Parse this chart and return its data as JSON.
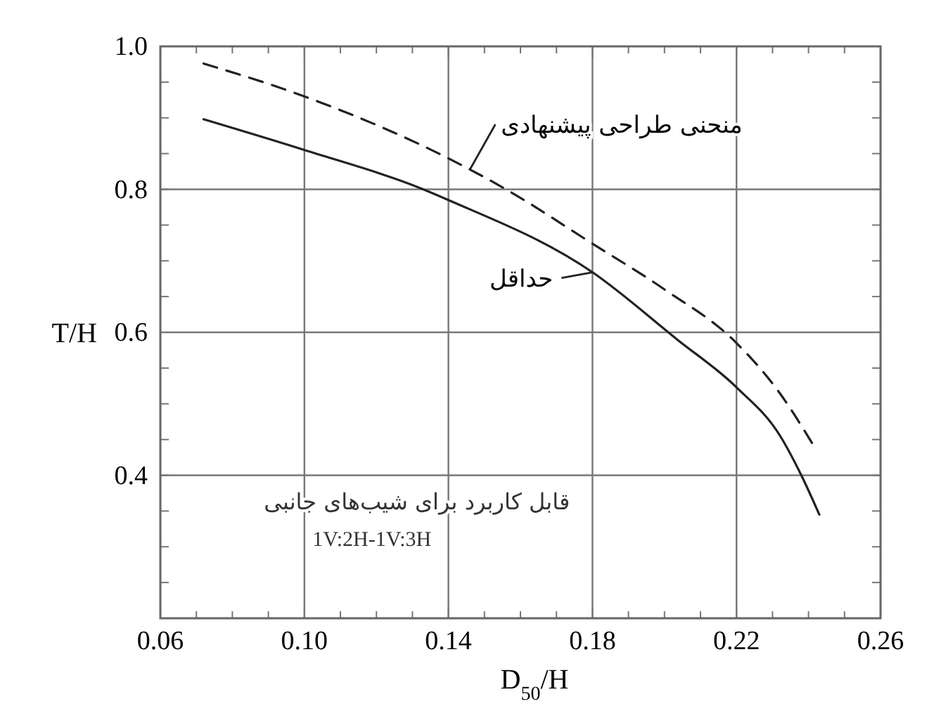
{
  "chart_data": {
    "type": "line",
    "xlabel": "D$_{50}$/H",
    "ylabel": "T/H",
    "xlim": [
      0.06,
      0.26
    ],
    "ylim": [
      0.2,
      1.0
    ],
    "xticks": [
      0.06,
      {
        "value": 0.07,
        "label": null
      },
      {
        "value": 0.08,
        "label": null
      },
      {
        "value": 0.09,
        "label": null
      },
      {
        "value": 0.1,
        "label": "0.10"
      },
      {
        "value": 0.11,
        "label": null
      },
      {
        "value": 0.12,
        "label": null
      },
      {
        "value": 0.13,
        "label": null
      },
      0.14,
      {
        "value": 0.15,
        "label": null
      },
      {
        "value": 0.16,
        "label": null
      },
      {
        "value": 0.17,
        "label": null
      },
      0.18,
      {
        "value": 0.19,
        "label": null
      },
      {
        "value": 0.2,
        "label": null
      },
      {
        "value": 0.21,
        "label": null
      },
      0.22,
      {
        "value": 0.23,
        "label": null
      },
      {
        "value": 0.24,
        "label": null
      },
      {
        "value": 0.25,
        "label": null
      },
      0.26
    ],
    "yticks": [
      {
        "value": 0.2,
        "label": null
      },
      {
        "value": 0.25,
        "label": null
      },
      {
        "value": 0.3,
        "label": null
      },
      {
        "value": 0.35,
        "label": null
      },
      0.4,
      {
        "value": 0.45,
        "label": null
      },
      {
        "value": 0.5,
        "label": null
      },
      {
        "value": 0.55,
        "label": null
      },
      0.6,
      {
        "value": 0.65,
        "label": null
      },
      {
        "value": 0.7,
        "label": null
      },
      {
        "value": 0.75,
        "label": null
      },
      0.8,
      {
        "value": 0.85,
        "label": null
      },
      {
        "value": 0.9,
        "label": null
      },
      {
        "value": 0.95,
        "label": null
      },
      {
        "value": 1.0,
        "label": "1.0"
      }
    ],
    "grid": true,
    "series": [
      {
        "color": "#222222",
        "line_style": "dashed",
        "x": [
          0.072,
          0.1,
          0.144,
          0.156,
          0.18,
          0.2,
          0.22,
          0.232,
          0.241
        ],
        "values": [
          0.976,
          0.93,
          0.833,
          0.8,
          0.724,
          0.66,
          0.585,
          0.515,
          0.445
        ]
      },
      {
        "color": "#222222",
        "line_style": "solid",
        "x": [
          0.072,
          0.1,
          0.133,
          0.14,
          0.18,
          0.2035,
          0.22,
          0.232,
          0.238,
          0.243
        ],
        "values": [
          0.898,
          0.855,
          0.8,
          0.785,
          0.684,
          0.59,
          0.523,
          0.456,
          0.4,
          0.345
        ]
      }
    ],
    "annotations": [
      {
        "text": "منحنی طراحی پیشنهادی",
        "x": 0.146,
        "y": 0.828
      },
      {
        "text": "حداقل",
        "x": 0.18,
        "y": 0.684
      },
      "قابل کاربرد برای شیب‌های جانبی",
      "1V:2H-1V:3H"
    ]
  }
}
